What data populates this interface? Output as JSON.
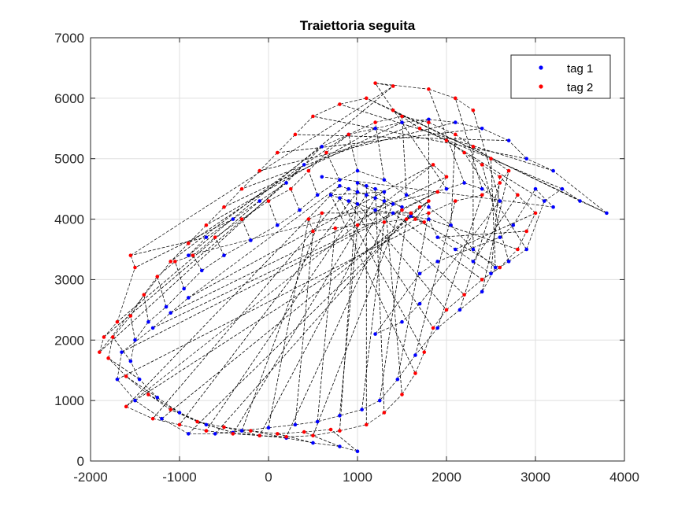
{
  "chart_data": {
    "type": "scatter",
    "title": "Traiettoria seguita",
    "xlabel": "",
    "ylabel": "",
    "xlim": [
      -2000,
      4000
    ],
    "ylim": [
      0,
      7000
    ],
    "xticks": [
      -2000,
      -1000,
      0,
      1000,
      2000,
      3000,
      4000
    ],
    "yticks": [
      0,
      1000,
      2000,
      3000,
      4000,
      5000,
      6000,
      7000
    ],
    "xtick_labels": [
      "-2000",
      "-1000",
      "0",
      "1000",
      "2000",
      "3000",
      "4000"
    ],
    "ytick_labels": [
      "0",
      "1000",
      "2000",
      "3000",
      "4000",
      "5000",
      "6000",
      "7000"
    ],
    "grid": true,
    "legend_position": "top-right",
    "connectors": "dashed black lines link tag 1 and tag 2 points",
    "series": [
      {
        "name": "tag 1",
        "color": "#0000ff",
        "points": [
          [
            1000,
            160
          ],
          [
            800,
            240
          ],
          [
            500,
            300
          ],
          [
            200,
            380
          ],
          [
            -100,
            420
          ],
          [
            -400,
            470
          ],
          [
            -700,
            600
          ],
          [
            -1000,
            800
          ],
          [
            -1250,
            1050
          ],
          [
            -1450,
            1350
          ],
          [
            -1550,
            1650
          ],
          [
            -1500,
            2000
          ],
          [
            -1350,
            2300
          ],
          [
            -1150,
            2550
          ],
          [
            -950,
            2850
          ],
          [
            -750,
            3150
          ],
          [
            -500,
            3400
          ],
          [
            -200,
            3650
          ],
          [
            100,
            3900
          ],
          [
            350,
            4150
          ],
          [
            550,
            4400
          ],
          [
            800,
            4650
          ],
          [
            1000,
            4800
          ],
          [
            1300,
            4650
          ],
          [
            1550,
            4400
          ],
          [
            1800,
            4200
          ],
          [
            2050,
            3900
          ],
          [
            2300,
            3500
          ],
          [
            2550,
            3200
          ],
          [
            2400,
            2800
          ],
          [
            2150,
            2500
          ],
          [
            1900,
            2200
          ],
          [
            1650,
            1750
          ],
          [
            1450,
            1350
          ],
          [
            1250,
            1000
          ],
          [
            1050,
            850
          ],
          [
            800,
            750
          ],
          [
            550,
            650
          ],
          [
            300,
            600
          ],
          [
            0,
            550
          ],
          [
            -300,
            500
          ],
          [
            -600,
            450
          ],
          [
            -900,
            450
          ],
          [
            -1200,
            700
          ],
          [
            -1500,
            1000
          ],
          [
            -1700,
            1350
          ],
          [
            -1650,
            1800
          ],
          [
            -1300,
            2200
          ],
          [
            -1100,
            2450
          ],
          [
            -900,
            2700
          ],
          [
            800,
            4550
          ],
          [
            900,
            4500
          ],
          [
            1000,
            4450
          ],
          [
            1100,
            4400
          ],
          [
            1200,
            4350
          ],
          [
            1300,
            4300
          ],
          [
            1400,
            4250
          ],
          [
            1500,
            4200
          ],
          [
            1000,
            4600
          ],
          [
            1100,
            4550
          ],
          [
            1200,
            4500
          ],
          [
            1300,
            4450
          ],
          [
            700,
            4400
          ],
          [
            800,
            4350
          ],
          [
            900,
            4300
          ],
          [
            1000,
            4250
          ],
          [
            1200,
            4150
          ],
          [
            1400,
            4100
          ],
          [
            1600,
            4050
          ],
          [
            1800,
            4000
          ],
          [
            1900,
            3700
          ],
          [
            2100,
            3500
          ],
          [
            2300,
            3300
          ],
          [
            2500,
            3100
          ],
          [
            2700,
            3300
          ],
          [
            2900,
            3500
          ],
          [
            3100,
            4300
          ],
          [
            3300,
            4500
          ],
          [
            3500,
            4300
          ],
          [
            3800,
            4100
          ],
          [
            3200,
            4800
          ],
          [
            2900,
            5000
          ],
          [
            2700,
            5300
          ],
          [
            2400,
            5500
          ],
          [
            2100,
            5600
          ],
          [
            1800,
            5650
          ],
          [
            1500,
            5600
          ],
          [
            1200,
            5500
          ],
          [
            900,
            5400
          ],
          [
            600,
            5200
          ],
          [
            400,
            4900
          ],
          [
            200,
            4600
          ],
          [
            -100,
            4300
          ],
          [
            -400,
            4000
          ],
          [
            -700,
            3700
          ],
          [
            -900,
            3400
          ],
          [
            2000,
            4500
          ],
          [
            2200,
            4600
          ],
          [
            2400,
            4500
          ],
          [
            2600,
            4300
          ],
          [
            1700,
            2600
          ],
          [
            1500,
            2300
          ],
          [
            1200,
            2100
          ],
          [
            1700,
            3100
          ],
          [
            1900,
            3300
          ],
          [
            2600,
            3700
          ],
          [
            2750,
            3900
          ],
          [
            3000,
            4500
          ],
          [
            3200,
            4200
          ],
          [
            600,
            4700
          ]
        ]
      },
      {
        "name": "tag 2",
        "color": "#ff0000",
        "points": [
          [
            700,
            520
          ],
          [
            400,
            480
          ],
          [
            100,
            450
          ],
          [
            -200,
            500
          ],
          [
            -500,
            560
          ],
          [
            -800,
            650
          ],
          [
            -1100,
            850
          ],
          [
            -1350,
            1100
          ],
          [
            -1600,
            1400
          ],
          [
            -1800,
            1700
          ],
          [
            -1750,
            2050
          ],
          [
            -1550,
            2400
          ],
          [
            -1400,
            2750
          ],
          [
            -1250,
            3050
          ],
          [
            -1050,
            3300
          ],
          [
            -850,
            3400
          ],
          [
            -600,
            3700
          ],
          [
            -300,
            4000
          ],
          [
            0,
            4300
          ],
          [
            250,
            4500
          ],
          [
            450,
            4800
          ],
          [
            650,
            5100
          ],
          [
            900,
            5400
          ],
          [
            1200,
            5600
          ],
          [
            1500,
            5700
          ],
          [
            1800,
            5600
          ],
          [
            2100,
            5400
          ],
          [
            2300,
            5200
          ],
          [
            2500,
            5000
          ],
          [
            2700,
            4800
          ],
          [
            2600,
            4600
          ],
          [
            2400,
            4400
          ],
          [
            2100,
            4300
          ],
          [
            1800,
            4100
          ],
          [
            1550,
            4000
          ],
          [
            1300,
            3950
          ],
          [
            1000,
            3900
          ],
          [
            750,
            3850
          ],
          [
            500,
            3800
          ],
          [
            450,
            4000
          ],
          [
            600,
            4100
          ],
          [
            1600,
            4100
          ],
          [
            1700,
            4200
          ],
          [
            1800,
            4300
          ],
          [
            1650,
            4000
          ],
          [
            1750,
            3950
          ],
          [
            1500,
            4150
          ],
          [
            1900,
            4450
          ],
          [
            2000,
            4700
          ],
          [
            1850,
            4900
          ],
          [
            -1600,
            900
          ],
          [
            -1300,
            700
          ],
          [
            -1000,
            600
          ],
          [
            -700,
            500
          ],
          [
            -400,
            450
          ],
          [
            -100,
            420
          ],
          [
            200,
            400
          ],
          [
            500,
            420
          ],
          [
            800,
            500
          ],
          [
            1100,
            600
          ],
          [
            1300,
            800
          ],
          [
            1500,
            1100
          ],
          [
            1650,
            1450
          ],
          [
            1750,
            1800
          ],
          [
            1850,
            2200
          ],
          [
            2000,
            2500
          ],
          [
            2200,
            2750
          ],
          [
            2400,
            3000
          ],
          [
            2600,
            3200
          ],
          [
            2800,
            3500
          ],
          [
            2900,
            3800
          ],
          [
            3000,
            4100
          ],
          [
            2800,
            4400
          ],
          [
            2600,
            4700
          ],
          [
            2400,
            4900
          ],
          [
            2200,
            5100
          ],
          [
            2000,
            5300
          ],
          [
            1700,
            5500
          ],
          [
            1400,
            5800
          ],
          [
            1100,
            6000
          ],
          [
            800,
            5900
          ],
          [
            500,
            5700
          ],
          [
            300,
            5400
          ],
          [
            100,
            5100
          ],
          [
            -100,
            4800
          ],
          [
            -300,
            4500
          ],
          [
            -500,
            4200
          ],
          [
            -700,
            3900
          ],
          [
            -900,
            3600
          ],
          [
            -1100,
            3300
          ],
          [
            -1900,
            1800
          ],
          [
            -1850,
            2050
          ],
          [
            -1700,
            2300
          ],
          [
            -1500,
            3200
          ],
          [
            -1550,
            3400
          ],
          [
            1400,
            6200
          ],
          [
            1200,
            6250
          ],
          [
            1800,
            6150
          ],
          [
            2100,
            6000
          ],
          [
            2300,
            5800
          ]
        ]
      }
    ]
  }
}
